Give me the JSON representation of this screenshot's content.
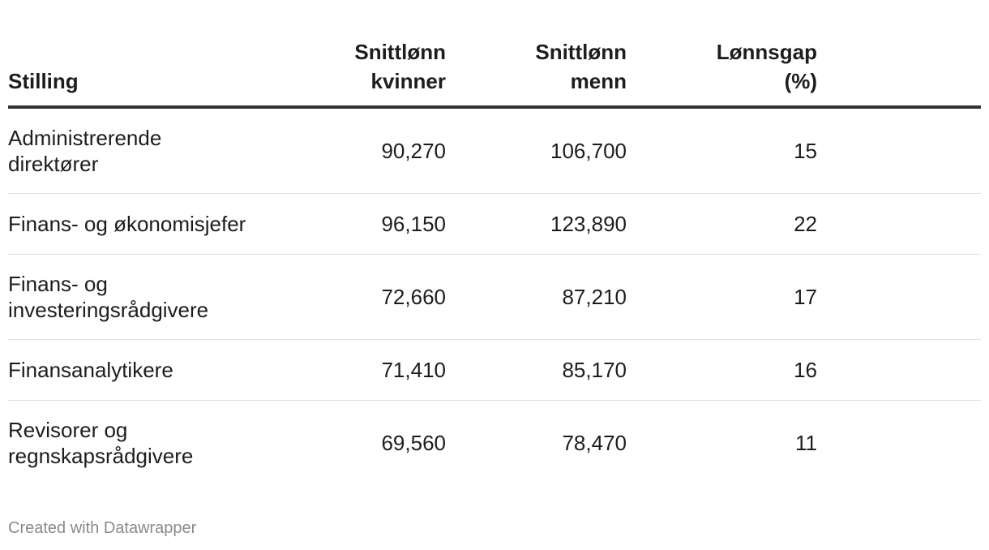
{
  "chart_data": {
    "type": "table",
    "columns": [
      "Stilling",
      "Snittlønn kvinner",
      "Snittlønn menn",
      "Lønnsgap (%)"
    ],
    "header": {
      "stilling": "Stilling",
      "kvinner_line1": "Snittlønn",
      "kvinner_line2": "kvinner",
      "menn_line1": "Snittlønn",
      "menn_line2": "menn",
      "gap_line1": "Lønnsgap",
      "gap_line2": "(%)"
    },
    "rows": [
      {
        "stilling_line1": "Administrerende",
        "stilling_line2": "direktører",
        "kvinner": "90,270",
        "menn": "106,700",
        "gap": "15"
      },
      {
        "stilling_line1": "Finans- og økonomisjefer",
        "stilling_line2": "",
        "kvinner": "96,150",
        "menn": "123,890",
        "gap": "22"
      },
      {
        "stilling_line1": "Finans- og",
        "stilling_line2": "investeringsrådgivere",
        "kvinner": "72,660",
        "menn": "87,210",
        "gap": "17"
      },
      {
        "stilling_line1": "Finansanalytikere",
        "stilling_line2": "",
        "kvinner": "71,410",
        "menn": "85,170",
        "gap": "16"
      },
      {
        "stilling_line1": "Revisorer og",
        "stilling_line2": "regnskapsrådgivere",
        "kvinner": "69,560",
        "menn": "78,470",
        "gap": "11"
      }
    ],
    "values": [
      [
        90270,
        106700,
        15
      ],
      [
        96150,
        123890,
        22
      ],
      [
        72660,
        87210,
        17
      ],
      [
        71410,
        85170,
        16
      ],
      [
        69560,
        78470,
        11
      ]
    ]
  },
  "footer": {
    "credit": "Created with Datawrapper"
  },
  "colors": {
    "text": "#1d1d1d",
    "header_rule": "#333333",
    "row_rule": "#e0e0e0",
    "footer_text": "#8a8a8a"
  }
}
